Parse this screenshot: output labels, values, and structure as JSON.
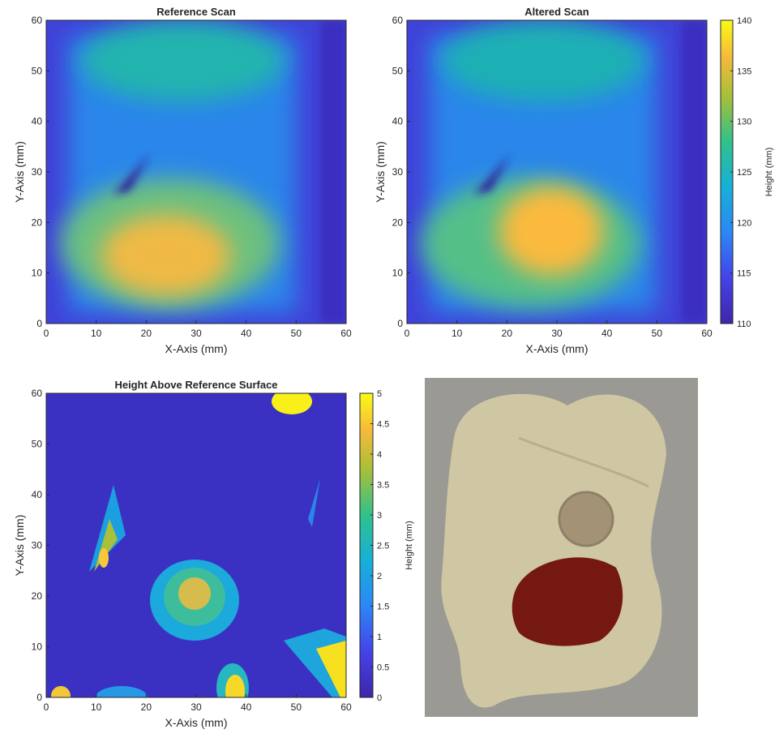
{
  "chart_data": [
    {
      "type": "heatmap",
      "title": "Reference Scan",
      "xlabel": "X-Axis (mm)",
      "ylabel": "Y-Axis (mm)",
      "xlim": [
        0,
        60
      ],
      "ylim": [
        0,
        60
      ],
      "xticks": [
        0,
        10,
        20,
        30,
        40,
        50,
        60
      ],
      "yticks": [
        0,
        10,
        20,
        30,
        40,
        50,
        60
      ]
    },
    {
      "type": "heatmap",
      "title": "Altered Scan",
      "xlabel": "X-Axis (mm)",
      "ylabel": "Y-Axis (mm)",
      "xlim": [
        0,
        60
      ],
      "ylim": [
        0,
        60
      ],
      "xticks": [
        0,
        10,
        20,
        30,
        40,
        50,
        60
      ],
      "yticks": [
        0,
        10,
        20,
        30,
        40,
        50,
        60
      ],
      "colorbar": {
        "label": "Height (mm)",
        "lim": [
          110,
          140
        ],
        "ticks": [
          110,
          115,
          120,
          125,
          130,
          135,
          140
        ]
      }
    },
    {
      "type": "heatmap",
      "title": "Height Above Reference Surface",
      "xlabel": "X-Axis (mm)",
      "ylabel": "Y-Axis (mm)",
      "xlim": [
        0,
        60
      ],
      "ylim": [
        0,
        60
      ],
      "xticks": [
        0,
        10,
        20,
        30,
        40,
        50,
        60
      ],
      "yticks": [
        0,
        10,
        20,
        30,
        40,
        50,
        60
      ],
      "colorbar": {
        "label": "Height (mm)",
        "lim": [
          0,
          5
        ],
        "ticks": [
          0,
          0.5,
          1,
          1.5,
          2,
          2.5,
          3,
          3.5,
          4,
          4.5,
          5
        ]
      }
    }
  ]
}
